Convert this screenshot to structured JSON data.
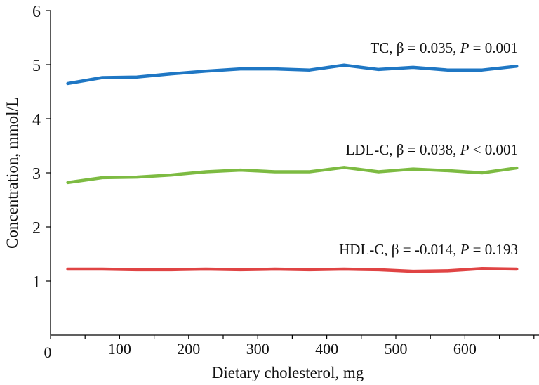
{
  "chart_data": {
    "type": "line",
    "title": "",
    "xlabel": "Dietary cholesterol, mg",
    "ylabel": "Concentration, mmol/L",
    "xlim": [
      0,
      700
    ],
    "ylim": [
      0,
      6
    ],
    "xticks": [
      0,
      100,
      200,
      300,
      400,
      500,
      600
    ],
    "yticks": [
      1,
      2,
      3,
      4,
      5,
      6
    ],
    "grid": false,
    "x": [
      25,
      75,
      125,
      175,
      225,
      275,
      325,
      375,
      425,
      475,
      525,
      575,
      625,
      675
    ],
    "series": [
      {
        "name": "TC",
        "color": "#1f77c4",
        "annotation": {
          "prefix": "TC, β = 0.035, ",
          "p": "P",
          "suffix": " = 0.001"
        },
        "values": [
          4.65,
          4.76,
          4.77,
          4.83,
          4.88,
          4.92,
          4.92,
          4.9,
          4.99,
          4.91,
          4.95,
          4.9,
          4.9,
          4.97
        ]
      },
      {
        "name": "LDL-C",
        "color": "#7dbb42",
        "annotation": {
          "prefix": "LDL-C, β = 0.038, ",
          "p": "P",
          "suffix": " < 0.001"
        },
        "values": [
          2.82,
          2.91,
          2.92,
          2.96,
          3.02,
          3.05,
          3.02,
          3.02,
          3.1,
          3.02,
          3.07,
          3.04,
          3.0,
          3.09
        ]
      },
      {
        "name": "HDL-C",
        "color": "#e04444",
        "annotation": {
          "prefix": "HDL-C, β = -0.014, ",
          "p": "P",
          "suffix": " = 0.193"
        },
        "values": [
          1.22,
          1.22,
          1.21,
          1.21,
          1.22,
          1.21,
          1.22,
          1.21,
          1.22,
          1.21,
          1.18,
          1.19,
          1.23,
          1.22
        ]
      }
    ]
  }
}
